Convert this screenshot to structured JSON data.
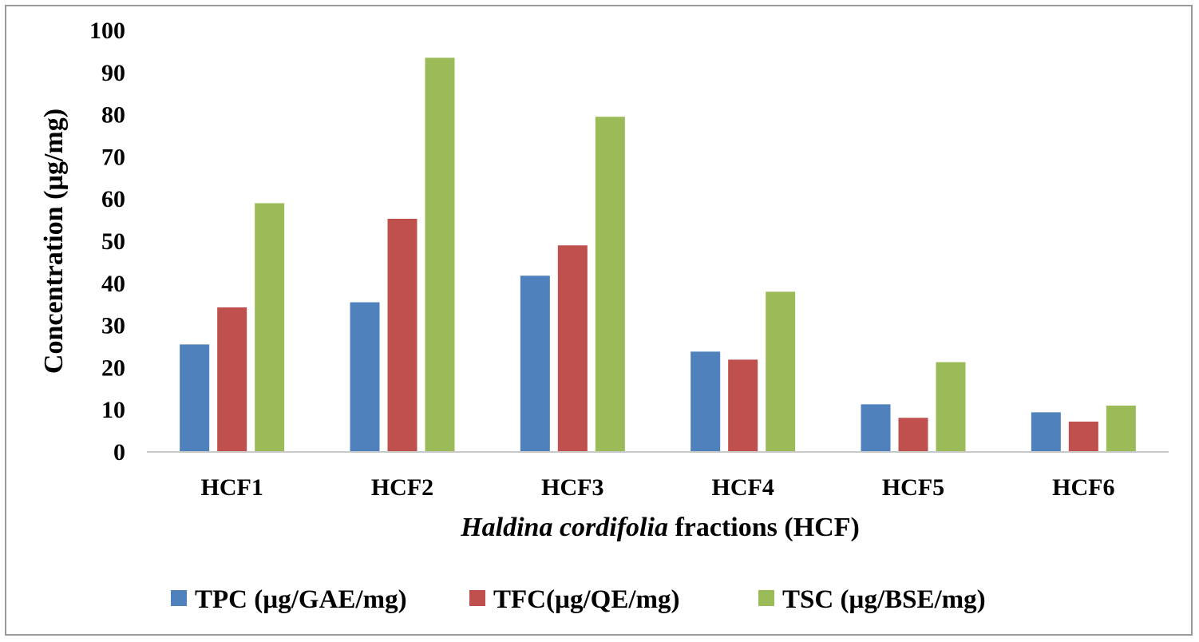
{
  "chart_data": {
    "type": "bar",
    "title": "",
    "xlabel_italic": "Haldina cordifolia",
    "xlabel_rest": " fractions (HCF)",
    "ylabel": "Concentration (µg/mg)",
    "categories": [
      "HCF1",
      "HCF2",
      "HCF3",
      "HCF4",
      "HCF5",
      "HCF6"
    ],
    "ylim": [
      0,
      100
    ],
    "yticks": [
      0,
      10,
      20,
      30,
      40,
      50,
      60,
      70,
      80,
      90,
      100
    ],
    "grid": false,
    "legend_position": "bottom",
    "series": [
      {
        "name": "TPC (µg/GAE/mg)",
        "color": "#4f81bd",
        "values": [
          25.5,
          35.5,
          41.8,
          23.8,
          11.3,
          9.4
        ]
      },
      {
        "name": "TFC(µg/QE/mg)",
        "color": "#c0504d",
        "values": [
          34.3,
          55.3,
          49.0,
          21.9,
          8.1,
          7.2
        ]
      },
      {
        "name": "TSC (µg/BSE/mg)",
        "color": "#9bbb59",
        "values": [
          59.0,
          93.5,
          79.5,
          38.0,
          21.3,
          11.0
        ]
      }
    ]
  }
}
